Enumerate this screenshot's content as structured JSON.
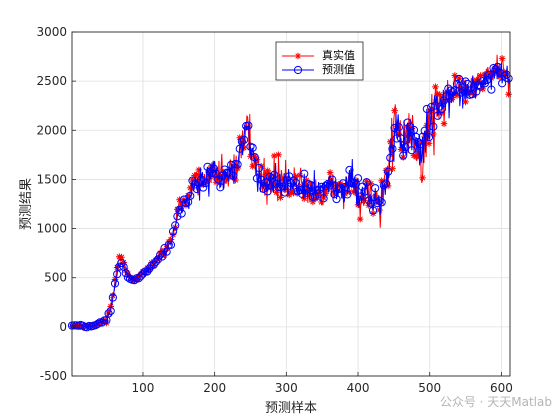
{
  "watermark": "公众号 · 天天Matlab",
  "colors": {
    "real": "#ff0000",
    "pred": "#0000ff",
    "grid": "#dfdfdf",
    "axis": "#262626"
  },
  "chart_data": {
    "type": "line",
    "xlabel": "预测样本",
    "ylabel": "预测结果",
    "xlim": [
      1,
      612
    ],
    "ylim": [
      -500,
      3000
    ],
    "xticks": [
      100,
      200,
      300,
      400,
      500,
      600
    ],
    "yticks": [
      -500,
      0,
      500,
      1000,
      1500,
      2000,
      2500,
      3000
    ],
    "grid": true,
    "legend_position": "top-right (inside)",
    "x_anchors": [
      1,
      10,
      20,
      30,
      40,
      50,
      55,
      60,
      65,
      70,
      75,
      80,
      90,
      100,
      110,
      120,
      130,
      140,
      150,
      160,
      170,
      180,
      190,
      200,
      210,
      220,
      230,
      240,
      245,
      250,
      260,
      270,
      280,
      290,
      300,
      310,
      320,
      330,
      340,
      350,
      360,
      370,
      380,
      390,
      400,
      410,
      420,
      430,
      440,
      450,
      455,
      460,
      470,
      480,
      490,
      500,
      510,
      520,
      530,
      540,
      550,
      560,
      570,
      580,
      590,
      600,
      612
    ],
    "series": [
      {
        "name": "真实值",
        "marker": "asterisk",
        "color": "#ff0000",
        "level": [
          10,
          15,
          0,
          10,
          40,
          80,
          200,
          400,
          650,
          700,
          600,
          500,
          480,
          550,
          600,
          700,
          750,
          900,
          1200,
          1300,
          1450,
          1500,
          1550,
          1600,
          1500,
          1550,
          1650,
          1900,
          2100,
          1800,
          1600,
          1450,
          1500,
          1450,
          1500,
          1400,
          1450,
          1350,
          1400,
          1350,
          1450,
          1400,
          1350,
          1550,
          1300,
          1400,
          1300,
          1250,
          1500,
          1900,
          2200,
          1800,
          2000,
          1900,
          1750,
          2100,
          2250,
          2350,
          2400,
          2450,
          2400,
          2450,
          2500,
          2550,
          2600,
          2650,
          2500
        ],
        "spread": [
          10,
          15,
          20,
          15,
          20,
          40,
          60,
          120,
          80,
          50,
          60,
          40,
          40,
          40,
          40,
          60,
          80,
          100,
          120,
          150,
          200,
          250,
          250,
          300,
          300,
          250,
          300,
          350,
          300,
          300,
          300,
          250,
          250,
          300,
          250,
          250,
          250,
          250,
          250,
          250,
          250,
          250,
          250,
          300,
          300,
          300,
          300,
          300,
          400,
          500,
          500,
          500,
          500,
          500,
          500,
          500,
          400,
          350,
          300,
          250,
          250,
          200,
          200,
          200,
          200,
          200,
          150
        ]
      },
      {
        "name": "预测值",
        "marker": "circle",
        "color": "#0000ff",
        "level": [
          10,
          15,
          0,
          10,
          40,
          80,
          180,
          380,
          600,
          650,
          580,
          500,
          480,
          540,
          600,
          690,
          740,
          880,
          1180,
          1280,
          1430,
          1480,
          1530,
          1580,
          1500,
          1540,
          1630,
          1850,
          2050,
          1780,
          1600,
          1450,
          1480,
          1450,
          1480,
          1400,
          1430,
          1360,
          1400,
          1360,
          1440,
          1400,
          1360,
          1520,
          1320,
          1400,
          1320,
          1280,
          1480,
          1850,
          2150,
          1800,
          1950,
          1880,
          1760,
          2050,
          2220,
          2330,
          2380,
          2430,
          2400,
          2440,
          2480,
          2540,
          2580,
          2620,
          2520
        ],
        "spread": [
          8,
          10,
          15,
          12,
          15,
          30,
          40,
          80,
          60,
          40,
          50,
          30,
          30,
          30,
          30,
          50,
          60,
          80,
          100,
          120,
          150,
          200,
          200,
          220,
          220,
          200,
          220,
          250,
          220,
          220,
          220,
          200,
          200,
          220,
          200,
          200,
          200,
          200,
          200,
          200,
          200,
          200,
          200,
          220,
          220,
          220,
          220,
          220,
          300,
          350,
          350,
          350,
          350,
          350,
          350,
          350,
          300,
          250,
          220,
          200,
          200,
          150,
          150,
          150,
          150,
          150,
          120
        ]
      }
    ]
  }
}
